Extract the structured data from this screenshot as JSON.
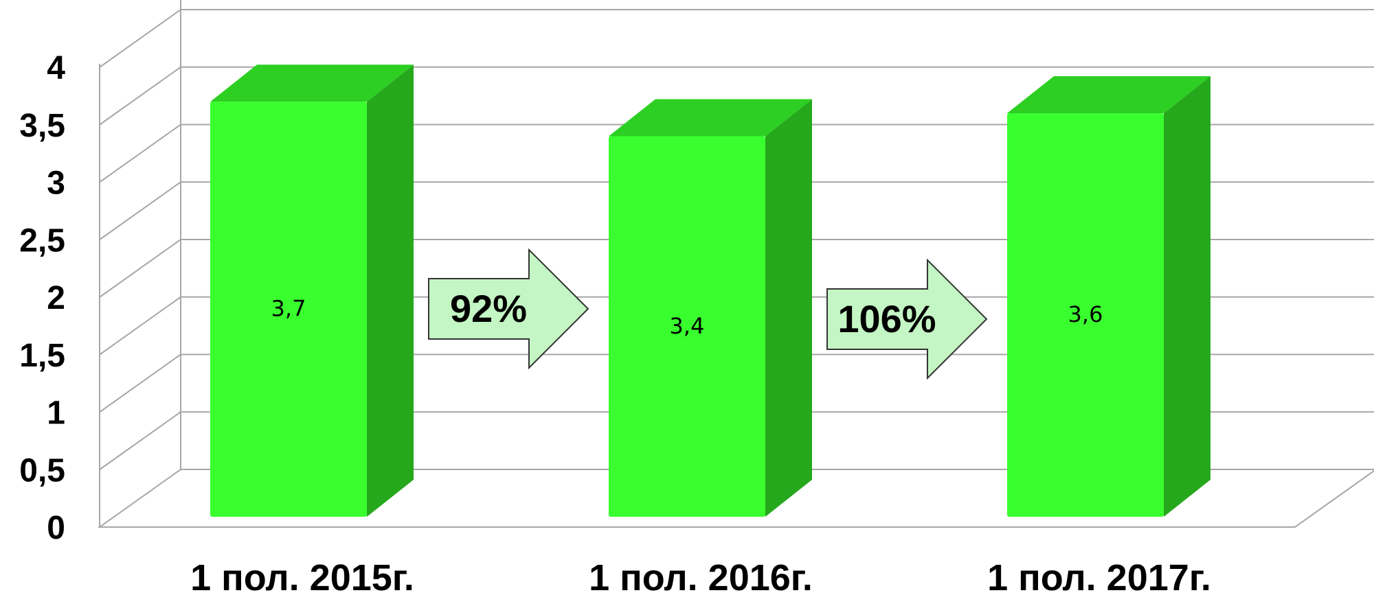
{
  "chart_data": {
    "type": "bar",
    "style": "3d-column",
    "categories": [
      "1 пол. 2015г.",
      "1 пол. 2016г.",
      "1 пол. 2017г."
    ],
    "values": [
      3.7,
      3.4,
      3.6
    ],
    "data_labels": [
      "3,7",
      "3,4",
      "3,6"
    ],
    "ylim": [
      0,
      4
    ],
    "yticks": [
      0,
      0.5,
      1,
      1.5,
      2,
      2.5,
      3,
      3.5,
      4
    ],
    "ytick_labels": [
      "0",
      "0,5",
      "1",
      "1,5",
      "2",
      "2,5",
      "3",
      "3,5",
      "4"
    ],
    "grid": true,
    "legend": "none",
    "annotations": [
      {
        "text": "92%",
        "between": [
          0,
          1
        ]
      },
      {
        "text": "106%",
        "between": [
          1,
          2
        ]
      }
    ],
    "colors": {
      "bar_front": "#39ff2e",
      "bar_top": "#2ccf22",
      "bar_side": "#26a81c",
      "arrow_fill": "#c4f5c4",
      "grid": "#a6a6a6"
    }
  }
}
